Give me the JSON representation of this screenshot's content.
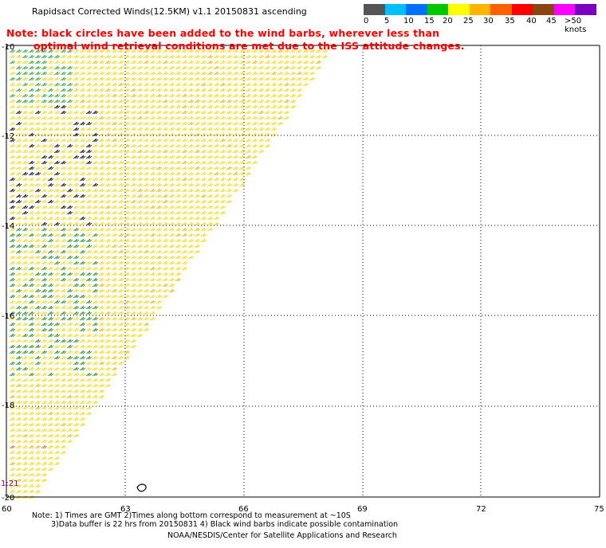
{
  "header": {
    "title": "Rapidsact Corrected Winds(12.5KM) v1.1 20150831 ascending"
  },
  "note": {
    "line1": "Note: black circles have been added to the wind barbs, wherever less than",
    "line2": "optimal wind retrieval conditions are met due to the ISS attitude changes."
  },
  "legend": {
    "colors": [
      "#555555",
      "#00bfff",
      "#0070ff",
      "#00c800",
      "#ffff00",
      "#ffb400",
      "#ff6000",
      "#ff0000",
      "#8b4513",
      "#ff00ff",
      "#7a00c0"
    ],
    "labels": [
      "0",
      "5",
      "10",
      "15",
      "20",
      "25",
      "30",
      "35",
      "40",
      "45",
      ">50 knots"
    ]
  },
  "map": {
    "lon_ticks": [
      "60",
      "63",
      "66",
      "69",
      "72",
      "75"
    ],
    "lat_ticks": [
      "-10",
      "-12",
      "-14",
      "-16",
      "-18",
      "-20"
    ],
    "time_label": "1:21"
  },
  "footer": {
    "line1": "Note: 1) Times are GMT 2)Times along bottom correspond to measurement at ~10S",
    "line2": "3)Data buffer is 22 hrs from 20150831 4) Black wind barbs indicate possible contamination",
    "line3": "NOAA/NESDIS/Center for Satellite Applications and Research"
  }
}
